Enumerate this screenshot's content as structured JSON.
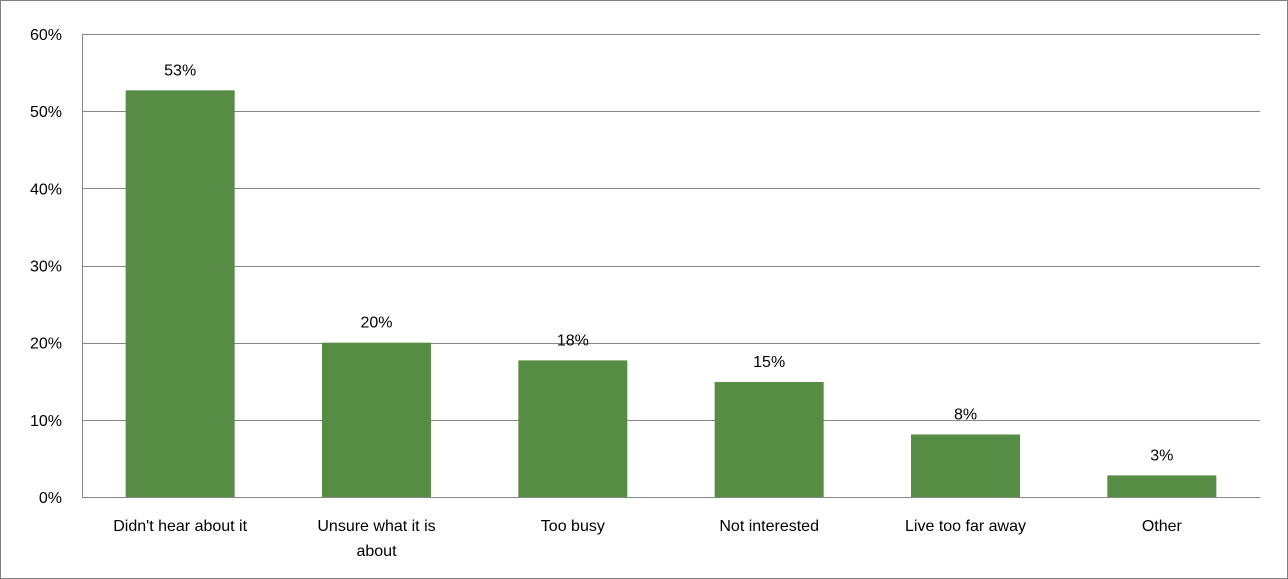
{
  "chart_data": {
    "type": "bar",
    "categories": [
      [
        "Didn't hear about it"
      ],
      [
        "Unsure what it is",
        "about"
      ],
      [
        "Too busy"
      ],
      [
        "Not interested"
      ],
      [
        "Live too far away"
      ],
      [
        "Other"
      ]
    ],
    "values": [
      52.7,
      20.0,
      17.7,
      14.9,
      8.1,
      2.8
    ],
    "data_labels": [
      "53%",
      "20%",
      "18%",
      "15%",
      "8%",
      "3%"
    ],
    "y_ticks": [
      0,
      10,
      20,
      30,
      40,
      50,
      60
    ],
    "y_tick_labels": [
      "0%",
      "10%",
      "20%",
      "30%",
      "40%",
      "50%",
      "60%"
    ],
    "ylim": [
      0,
      60
    ],
    "grid": true,
    "legend": "none",
    "bar_color": "#568c43",
    "grid_color": "#868686",
    "axis_color": "#868686"
  }
}
